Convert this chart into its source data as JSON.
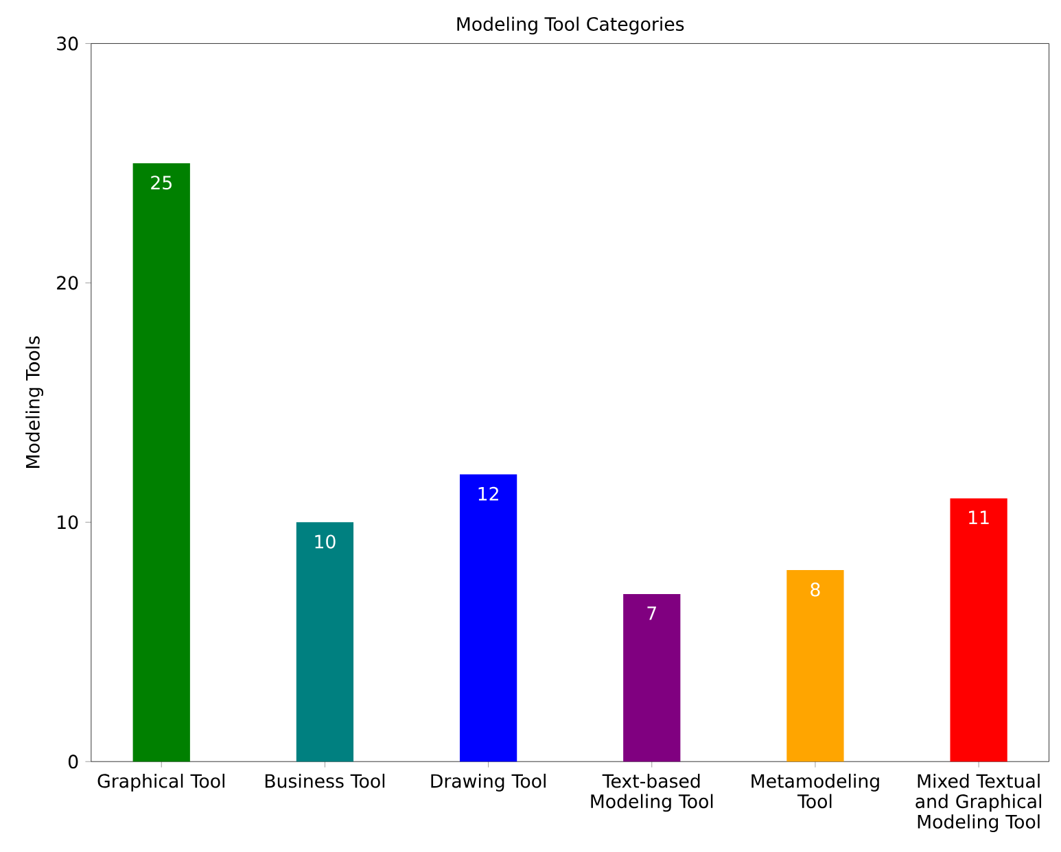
{
  "chart_data": {
    "type": "bar",
    "title": "Modeling Tool Categories",
    "ylabel": "Modeling Tools",
    "categories": [
      "Graphical Tool",
      "Business Tool",
      "Drawing Tool",
      "Text-based Modeling Tool",
      "Metamodeling Tool",
      "Mixed Textual and Graphical Modeling Tool"
    ],
    "values": [
      25,
      10,
      12,
      7,
      8,
      11
    ],
    "colors": [
      "#008000",
      "#008080",
      "#0000ff",
      "#800080",
      "#ffa500",
      "#ff0000"
    ],
    "ylim": [
      0,
      30
    ],
    "yticks": [
      0,
      10,
      20,
      30
    ],
    "grid": false,
    "data_labels": true
  }
}
